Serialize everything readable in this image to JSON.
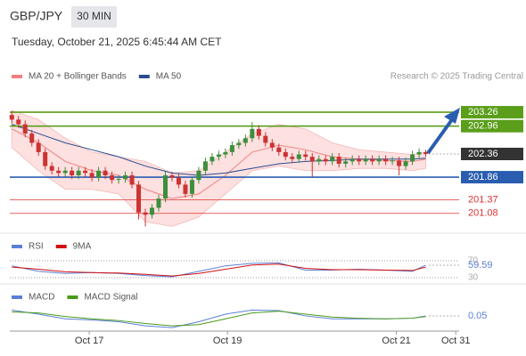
{
  "chart_data": [
    {
      "type": "candlestick",
      "title": "GBP/JPY",
      "subtitle": "30 MIN",
      "date": "Tuesday, October 21, 2025 6:45:44 AM CET",
      "legend": [
        {
          "name": "MA 20 + Bollinger Bands",
          "color": "#f08080"
        },
        {
          "name": "MA 50",
          "color": "#2a4d8f"
        }
      ],
      "note": "Research © 2025 Trading Central",
      "up_color": "#3d8f3d",
      "down_color": "#cc3333",
      "open": [
        203.2,
        203.1,
        203.0,
        202.8,
        202.6,
        202.4,
        202.1,
        202.0,
        201.95,
        202.0,
        201.9,
        202.0,
        201.95,
        201.85,
        202.0,
        201.9,
        201.8,
        201.82,
        201.9,
        201.7,
        201.1,
        201.05,
        201.2,
        201.4,
        201.9,
        201.85,
        201.7,
        201.5,
        201.8,
        202.0,
        202.2,
        202.3,
        202.35,
        202.4,
        202.55,
        202.6,
        202.7,
        202.9,
        202.75,
        202.6,
        202.5,
        202.4,
        202.3,
        202.25,
        202.35,
        202.3,
        202.2,
        202.25,
        202.2,
        202.3,
        202.15,
        202.2,
        202.25,
        202.2,
        202.25,
        202.2,
        202.25,
        202.2,
        202.22,
        202.1,
        202.2,
        202.35,
        202.4
      ],
      "high": [
        203.28,
        203.18,
        203.08,
        202.88,
        202.68,
        202.48,
        202.18,
        202.08,
        202.08,
        202.08,
        202.08,
        202.08,
        202.03,
        202.08,
        202.08,
        201.98,
        201.9,
        201.98,
        201.98,
        201.78,
        201.18,
        201.28,
        201.48,
        201.98,
        201.98,
        201.93,
        201.78,
        201.88,
        202.08,
        202.28,
        202.38,
        202.43,
        202.48,
        202.63,
        202.68,
        202.78,
        203.05,
        202.98,
        202.83,
        202.68,
        202.58,
        202.48,
        202.38,
        202.43,
        202.43,
        202.38,
        202.33,
        202.33,
        202.38,
        202.38,
        202.28,
        202.33,
        202.33,
        202.33,
        202.33,
        202.33,
        202.33,
        202.3,
        202.3,
        202.28,
        202.43,
        202.48,
        202.45
      ],
      "low": [
        203.02,
        202.92,
        202.72,
        202.52,
        202.32,
        202.02,
        201.92,
        201.87,
        201.87,
        201.82,
        201.82,
        201.87,
        201.77,
        201.77,
        201.82,
        201.72,
        201.72,
        201.74,
        201.62,
        200.95,
        200.8,
        200.97,
        201.12,
        201.32,
        201.77,
        201.62,
        201.42,
        201.42,
        201.72,
        201.92,
        202.12,
        202.22,
        202.27,
        202.32,
        202.47,
        202.52,
        202.62,
        202.67,
        202.52,
        202.42,
        202.32,
        202.22,
        202.17,
        202.17,
        202.22,
        201.86,
        202.12,
        202.12,
        202.12,
        202.07,
        202.07,
        202.12,
        202.12,
        202.12,
        202.12,
        202.12,
        202.12,
        202.12,
        201.9,
        202.02,
        202.12,
        202.27,
        202.3
      ],
      "close": [
        203.1,
        203.0,
        202.8,
        202.6,
        202.4,
        202.1,
        202.0,
        201.95,
        202.0,
        201.9,
        202.0,
        201.95,
        201.85,
        202.0,
        201.9,
        201.8,
        201.82,
        201.9,
        201.7,
        201.1,
        201.05,
        201.2,
        201.4,
        201.9,
        201.85,
        201.7,
        201.5,
        201.8,
        202.0,
        202.2,
        202.3,
        202.35,
        202.4,
        202.55,
        202.6,
        202.7,
        202.9,
        202.75,
        202.6,
        202.5,
        202.4,
        202.3,
        202.25,
        202.35,
        202.3,
        202.2,
        202.25,
        202.2,
        202.3,
        202.15,
        202.2,
        202.25,
        202.2,
        202.25,
        202.2,
        202.25,
        202.2,
        202.22,
        202.1,
        202.2,
        202.35,
        202.4,
        202.36
      ],
      "bands": {
        "x": [
          0,
          4,
          8,
          12,
          16,
          20,
          24,
          28,
          32,
          36,
          40,
          44,
          48,
          52,
          56,
          60,
          62
        ],
        "upper": [
          203.3,
          203.1,
          202.7,
          202.4,
          202.3,
          202.2,
          201.95,
          202.0,
          202.4,
          202.8,
          203.0,
          202.9,
          202.6,
          202.45,
          202.4,
          202.35,
          202.4
        ],
        "lower": [
          202.5,
          202.0,
          201.6,
          201.6,
          201.5,
          200.9,
          200.8,
          201.0,
          201.5,
          202.0,
          202.1,
          202.0,
          202.0,
          202.05,
          202.05,
          202.0,
          202.05
        ],
        "ma20": [
          202.9,
          202.6,
          202.2,
          202.0,
          201.9,
          201.6,
          201.4,
          201.5,
          201.9,
          202.4,
          202.55,
          202.45,
          202.3,
          202.25,
          202.22,
          202.2,
          202.25
        ],
        "ma50": [
          203.0,
          202.8,
          202.6,
          202.45,
          202.3,
          202.1,
          201.95,
          201.9,
          201.95,
          202.05,
          202.15,
          202.2,
          202.22,
          202.25,
          202.25,
          202.25,
          202.27
        ]
      },
      "levels": [
        {
          "value": 203.26,
          "color": "#5a9e1a",
          "style": "box"
        },
        {
          "value": 202.96,
          "color": "#5a9e1a",
          "style": "box"
        },
        {
          "value": 202.36,
          "color": "#333333",
          "style": "current"
        },
        {
          "value": 201.86,
          "color": "#2a5db0",
          "style": "box"
        },
        {
          "value": 201.37,
          "color": "#d33",
          "style": "text"
        },
        {
          "value": 201.08,
          "color": "#d33",
          "style": "text"
        }
      ],
      "ylim": [
        200.73,
        203.76
      ],
      "xlim": [
        -0.3,
        67
      ],
      "xticks": [
        {
          "value": 11.6,
          "label": "Oct 17"
        },
        {
          "value": 32.3,
          "label": "Oct 19"
        },
        {
          "value": 57.6,
          "label": "Oct 21"
        },
        {
          "value": 66.5,
          "label": "Oct 31"
        }
      ]
    },
    {
      "type": "line",
      "x": [
        0,
        4,
        8,
        12,
        16,
        20,
        24,
        28,
        32,
        36,
        40,
        44,
        48,
        52,
        56,
        60,
        62
      ],
      "ylim": [
        21.6,
        82.6
      ],
      "yticks": [
        70,
        30
      ],
      "series": [
        {
          "name": "RSI",
          "color": "#5b7fd6",
          "values": [
            58,
            45,
            40,
            42,
            40,
            35,
            32,
            45,
            58,
            64,
            65,
            48,
            48,
            50,
            48,
            45,
            59.59
          ]
        },
        {
          "name": "9MA",
          "color": "#d01010",
          "values": [
            55,
            50,
            44,
            42,
            41,
            38,
            34,
            40,
            50,
            60,
            62,
            52,
            49,
            49,
            48,
            47,
            55
          ]
        }
      ]
    },
    {
      "type": "line",
      "x": [
        0,
        4,
        8,
        12,
        16,
        20,
        24,
        28,
        32,
        36,
        40,
        44,
        48,
        52,
        56,
        60,
        62
      ],
      "ylim": [
        -0.21,
        0.43
      ],
      "series": [
        {
          "name": "MACD",
          "color": "#5b7fd6",
          "values": [
            0.15,
            0.08,
            0.0,
            -0.02,
            -0.05,
            -0.12,
            -0.15,
            -0.05,
            0.08,
            0.15,
            0.14,
            0.05,
            0.0,
            0.0,
            0.0,
            0.01,
            0.05
          ]
        },
        {
          "name": "MACD Signal",
          "color": "#4a9a1a",
          "values": [
            0.12,
            0.1,
            0.04,
            0.0,
            -0.03,
            -0.08,
            -0.12,
            -0.1,
            0.0,
            0.1,
            0.13,
            0.08,
            0.03,
            0.01,
            0.0,
            0.01,
            0.04
          ]
        }
      ]
    }
  ]
}
